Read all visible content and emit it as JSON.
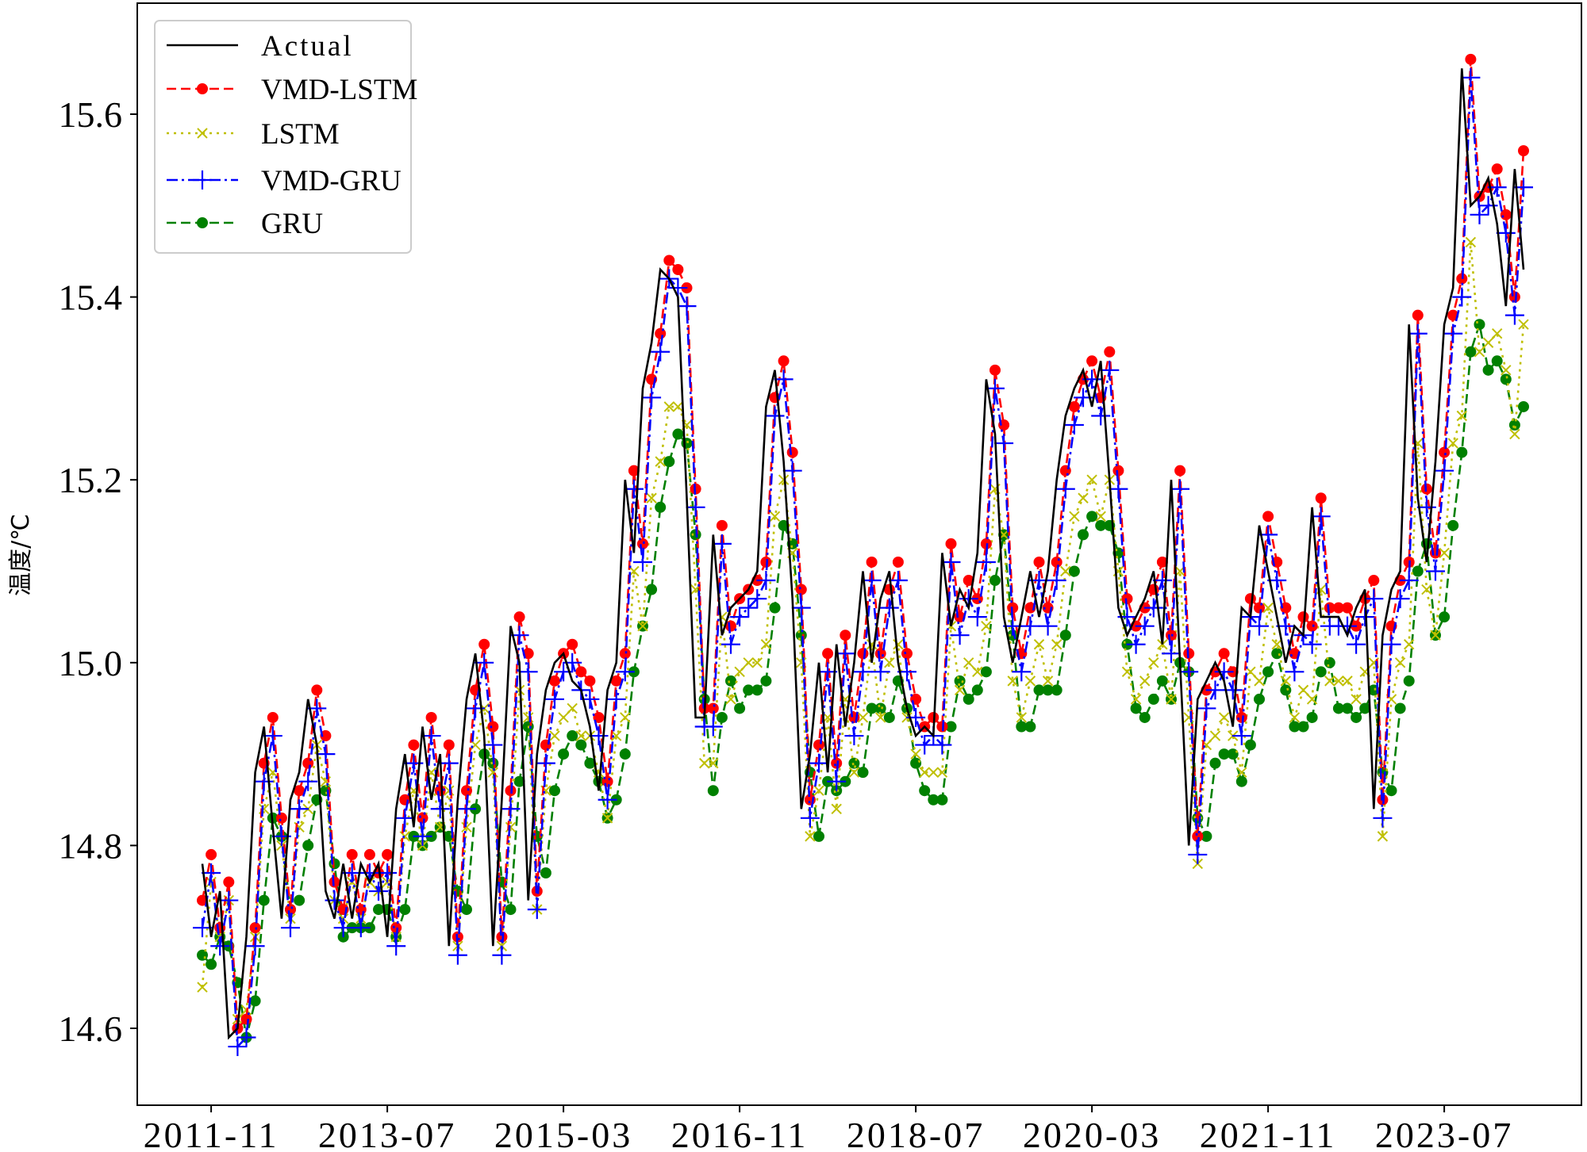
{
  "chart_data": {
    "type": "line",
    "title": "",
    "xlabel": "",
    "ylabel": "温度/℃",
    "ylim": [
      14.52,
      15.72
    ],
    "grid": false,
    "legend_placement": "top-left",
    "start_month": "2011-10",
    "x_tick_labels": [
      "2011-11",
      "2013-07",
      "2015-03",
      "2016-11",
      "2018-07",
      "2020-03",
      "2021-11",
      "2023-07"
    ],
    "x_tick_month_index": [
      1,
      21,
      41,
      61,
      81,
      101,
      121,
      141
    ],
    "y_ticks": [
      14.6,
      14.8,
      15.0,
      15.2,
      15.4,
      15.6
    ],
    "y_tick_labels": [
      "14.6",
      "14.8",
      "15.0",
      "15.2",
      "15.4",
      "15.6"
    ],
    "series": [
      {
        "name": "Actual",
        "color": "#000000",
        "style": "solid",
        "marker": "none",
        "values": [
          14.78,
          14.7,
          14.75,
          14.59,
          14.6,
          14.7,
          14.88,
          14.93,
          14.82,
          14.72,
          14.85,
          14.88,
          14.96,
          14.91,
          14.75,
          14.72,
          14.78,
          14.72,
          14.78,
          14.76,
          14.78,
          14.7,
          14.84,
          14.9,
          14.82,
          14.93,
          14.85,
          14.9,
          14.69,
          14.85,
          14.96,
          15.01,
          14.92,
          14.69,
          14.85,
          15.04,
          15.0,
          14.74,
          14.9,
          14.97,
          15.0,
          15.01,
          14.98,
          14.97,
          14.93,
          14.86,
          14.97,
          15.0,
          15.2,
          15.12,
          15.3,
          15.35,
          15.43,
          15.42,
          15.4,
          15.18,
          14.94,
          14.94,
          15.14,
          15.03,
          15.06,
          15.07,
          15.08,
          15.1,
          15.28,
          15.32,
          15.22,
          15.07,
          14.84,
          14.9,
          15.0,
          14.88,
          15.02,
          14.93,
          15.0,
          15.1,
          15.0,
          15.07,
          15.1,
          15.0,
          14.95,
          14.92,
          14.93,
          14.92,
          15.12,
          15.04,
          15.08,
          15.06,
          15.12,
          15.31,
          15.25,
          15.05,
          15.0,
          15.05,
          15.1,
          15.05,
          15.1,
          15.2,
          15.27,
          15.3,
          15.32,
          15.28,
          15.33,
          15.2,
          15.06,
          15.03,
          15.05,
          15.07,
          15.1,
          15.02,
          15.2,
          15.0,
          14.8,
          14.96,
          14.98,
          15.0,
          14.98,
          14.93,
          15.06,
          15.05,
          15.15,
          15.1,
          15.05,
          15.0,
          15.04,
          15.03,
          15.17,
          15.05,
          15.05,
          15.05,
          15.03,
          15.06,
          15.08,
          14.84,
          15.03,
          15.08,
          15.1,
          15.37,
          15.18,
          15.11,
          15.22,
          15.37,
          15.41,
          15.65,
          15.5,
          15.51,
          15.53,
          15.48,
          15.39,
          15.54,
          15.43
        ]
      },
      {
        "name": "VMD-LSTM",
        "color": "#ff0000",
        "style": "dashed",
        "marker": "circle",
        "values": [
          14.74,
          14.79,
          14.71,
          14.76,
          14.6,
          14.61,
          14.71,
          14.89,
          14.94,
          14.83,
          14.73,
          14.86,
          14.89,
          14.97,
          14.92,
          14.76,
          14.73,
          14.79,
          14.73,
          14.79,
          14.77,
          14.79,
          14.71,
          14.85,
          14.91,
          14.83,
          14.94,
          14.86,
          14.91,
          14.7,
          14.86,
          14.97,
          15.02,
          14.93,
          14.7,
          14.86,
          15.05,
          15.01,
          14.75,
          14.91,
          14.98,
          15.01,
          15.02,
          14.99,
          14.98,
          14.94,
          14.87,
          14.98,
          15.01,
          15.21,
          15.13,
          15.31,
          15.36,
          15.44,
          15.43,
          15.41,
          15.19,
          14.95,
          14.95,
          15.15,
          15.04,
          15.07,
          15.08,
          15.09,
          15.11,
          15.29,
          15.33,
          15.23,
          15.08,
          14.85,
          14.91,
          15.01,
          14.89,
          15.03,
          14.94,
          15.01,
          15.11,
          15.01,
          15.08,
          15.11,
          15.01,
          14.96,
          14.93,
          14.94,
          14.93,
          15.13,
          15.05,
          15.09,
          15.07,
          15.13,
          15.32,
          15.26,
          15.06,
          15.01,
          15.06,
          15.11,
          15.06,
          15.11,
          15.21,
          15.28,
          15.31,
          15.33,
          15.29,
          15.34,
          15.21,
          15.07,
          15.04,
          15.06,
          15.08,
          15.11,
          15.03,
          15.21,
          15.01,
          14.81,
          14.97,
          14.99,
          15.01,
          14.99,
          14.94,
          15.07,
          15.06,
          15.16,
          15.11,
          15.06,
          15.01,
          15.05,
          15.04,
          15.18,
          15.06,
          15.06,
          15.06,
          15.04,
          15.07,
          15.09,
          14.85,
          15.04,
          15.09,
          15.11,
          15.38,
          15.19,
          15.12,
          15.23,
          15.38,
          15.42,
          15.66,
          15.51,
          15.52,
          15.54,
          15.49,
          15.4,
          15.56
        ]
      },
      {
        "name": "LSTM",
        "color": "#bfbf00",
        "style": "dotted",
        "marker": "x",
        "values": [
          14.645,
          14.76,
          14.7,
          14.74,
          14.61,
          14.62,
          14.7,
          14.84,
          14.88,
          14.8,
          14.72,
          14.82,
          14.84,
          14.91,
          14.87,
          14.74,
          14.72,
          14.76,
          14.72,
          14.76,
          14.75,
          14.76,
          14.7,
          14.81,
          14.86,
          14.8,
          14.88,
          14.82,
          14.86,
          14.69,
          14.82,
          14.91,
          14.95,
          14.88,
          14.69,
          14.82,
          14.97,
          14.94,
          14.73,
          14.86,
          14.92,
          14.94,
          14.95,
          14.92,
          14.92,
          14.88,
          14.83,
          14.92,
          14.94,
          15.1,
          15.04,
          15.18,
          15.22,
          15.28,
          15.28,
          15.26,
          15.08,
          14.89,
          14.89,
          15.05,
          14.96,
          14.99,
          15.0,
          15.0,
          15.02,
          15.16,
          15.2,
          15.12,
          15.0,
          14.81,
          14.86,
          14.94,
          14.84,
          14.96,
          14.88,
          14.94,
          15.02,
          14.94,
          15.0,
          15.02,
          14.94,
          14.9,
          14.88,
          14.88,
          14.88,
          15.04,
          14.97,
          15.0,
          14.99,
          15.04,
          15.19,
          15.14,
          14.98,
          14.94,
          14.98,
          15.02,
          14.98,
          15.02,
          15.1,
          15.16,
          15.18,
          15.2,
          15.16,
          15.2,
          15.1,
          14.99,
          14.96,
          14.98,
          15.0,
          15.02,
          14.96,
          15.1,
          14.94,
          14.78,
          14.91,
          14.92,
          14.94,
          14.92,
          14.88,
          14.99,
          14.98,
          15.06,
          15.02,
          14.98,
          14.94,
          14.97,
          14.96,
          15.08,
          14.98,
          14.98,
          14.98,
          14.96,
          14.99,
          15.0,
          14.81,
          14.96,
          15.0,
          15.02,
          15.24,
          15.08,
          15.03,
          15.12,
          15.24,
          15.27,
          15.46,
          15.34,
          15.35,
          15.36,
          15.32,
          15.25,
          15.37
        ]
      },
      {
        "name": "VMD-GRU",
        "color": "#0000ff",
        "style": "dashdot",
        "marker": "plus",
        "values": [
          14.71,
          14.77,
          14.69,
          14.74,
          14.58,
          14.59,
          14.69,
          14.87,
          14.92,
          14.81,
          14.71,
          14.84,
          14.87,
          14.95,
          14.9,
          14.74,
          14.71,
          14.77,
          14.71,
          14.77,
          14.75,
          14.77,
          14.69,
          14.83,
          14.89,
          14.81,
          14.92,
          14.84,
          14.89,
          14.68,
          14.84,
          14.95,
          15.0,
          14.91,
          14.68,
          14.84,
          15.03,
          14.99,
          14.73,
          14.89,
          14.96,
          14.99,
          15.0,
          14.97,
          14.96,
          14.92,
          14.85,
          14.96,
          14.99,
          15.19,
          15.11,
          15.29,
          15.34,
          15.42,
          15.41,
          15.39,
          15.17,
          14.93,
          14.93,
          15.13,
          15.02,
          15.05,
          15.06,
          15.07,
          15.09,
          15.27,
          15.31,
          15.21,
          15.06,
          14.83,
          14.89,
          14.99,
          14.87,
          15.01,
          14.92,
          14.99,
          15.09,
          14.99,
          15.06,
          15.09,
          14.99,
          14.94,
          14.91,
          14.92,
          14.91,
          15.11,
          15.03,
          15.07,
          15.05,
          15.11,
          15.3,
          15.24,
          15.04,
          14.99,
          15.04,
          15.09,
          15.04,
          15.09,
          15.19,
          15.26,
          15.29,
          15.31,
          15.27,
          15.32,
          15.19,
          15.05,
          15.02,
          15.04,
          15.06,
          15.09,
          15.01,
          15.19,
          14.99,
          14.79,
          14.95,
          14.97,
          14.99,
          14.97,
          14.92,
          15.05,
          15.04,
          15.14,
          15.09,
          15.04,
          14.99,
          15.03,
          15.02,
          15.16,
          15.04,
          15.04,
          15.04,
          15.02,
          15.05,
          15.07,
          14.83,
          15.02,
          15.07,
          15.09,
          15.36,
          15.17,
          15.1,
          15.21,
          15.36,
          15.4,
          15.64,
          15.49,
          15.5,
          15.52,
          15.47,
          15.38,
          15.52
        ]
      },
      {
        "name": "GRU",
        "color": "#008000",
        "style": "dashed",
        "marker": "circle",
        "values": [
          14.68,
          14.67,
          14.7,
          14.69,
          14.65,
          14.59,
          14.63,
          14.74,
          14.83,
          14.81,
          14.73,
          14.74,
          14.8,
          14.85,
          14.86,
          14.78,
          14.7,
          14.71,
          14.71,
          14.71,
          14.73,
          14.73,
          14.7,
          14.73,
          14.81,
          14.8,
          14.81,
          14.82,
          14.81,
          14.75,
          14.73,
          14.84,
          14.9,
          14.89,
          14.76,
          14.73,
          14.87,
          14.93,
          14.81,
          14.77,
          14.86,
          14.9,
          14.92,
          14.91,
          14.89,
          14.87,
          14.83,
          14.85,
          14.9,
          14.99,
          15.04,
          15.08,
          15.17,
          15.22,
          15.25,
          15.24,
          15.14,
          14.96,
          14.86,
          14.94,
          14.98,
          14.95,
          14.97,
          14.97,
          14.98,
          15.06,
          15.15,
          15.13,
          15.03,
          14.88,
          14.81,
          14.87,
          14.86,
          14.87,
          14.89,
          14.88,
          14.95,
          14.95,
          14.94,
          14.98,
          14.95,
          14.89,
          14.86,
          14.85,
          14.85,
          14.93,
          14.98,
          14.96,
          14.97,
          14.99,
          15.09,
          15.14,
          15.03,
          14.93,
          14.93,
          14.97,
          14.97,
          14.97,
          15.03,
          15.1,
          15.14,
          15.16,
          15.15,
          15.15,
          15.12,
          15.02,
          14.95,
          14.94,
          14.96,
          14.98,
          14.96,
          15.0,
          14.99,
          14.83,
          14.81,
          14.89,
          14.9,
          14.9,
          14.87,
          14.91,
          14.96,
          14.99,
          15.01,
          14.97,
          14.93,
          14.93,
          14.94,
          14.99,
          15.0,
          14.95,
          14.95,
          14.94,
          14.95,
          14.97,
          14.88,
          14.86,
          14.95,
          14.98,
          15.1,
          15.13,
          15.03,
          15.05,
          15.15,
          15.23,
          15.34,
          15.37,
          15.32,
          15.33,
          15.31,
          15.26,
          15.28
        ]
      }
    ]
  }
}
